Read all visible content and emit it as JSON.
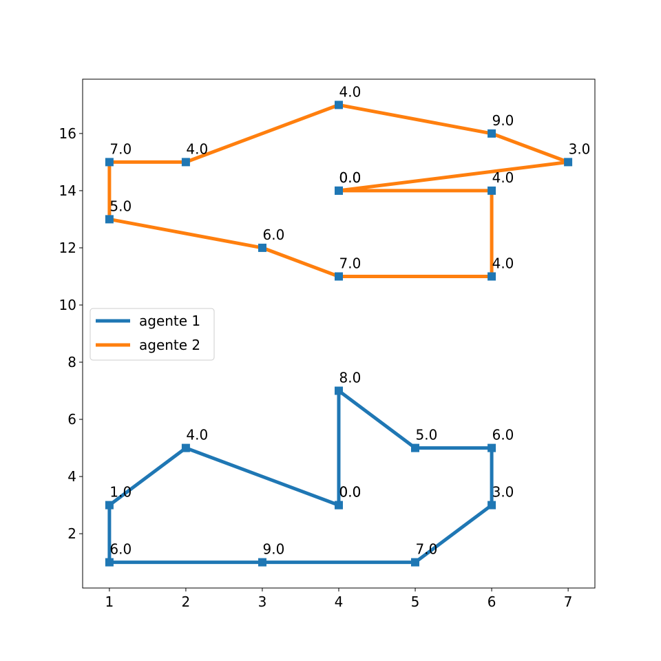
{
  "chart_data": {
    "type": "line",
    "title": "",
    "xlabel": "",
    "ylabel": "",
    "xlim": [
      0.65,
      7.35
    ],
    "ylim": [
      0.1,
      17.9
    ],
    "xticks": [
      1,
      2,
      3,
      4,
      5,
      6,
      7
    ],
    "yticks": [
      2,
      4,
      6,
      8,
      10,
      12,
      14,
      16
    ],
    "grid": false,
    "legend_position": "center-left",
    "marker_color": "#1f77b4",
    "series": [
      {
        "name": "agente 1",
        "color": "#1f77b4",
        "points": [
          {
            "x": 4,
            "y": 3,
            "label": "0.0"
          },
          {
            "x": 2,
            "y": 5,
            "label": "4.0"
          },
          {
            "x": 1,
            "y": 3,
            "label": "1.0"
          },
          {
            "x": 1,
            "y": 1,
            "label": "6.0"
          },
          {
            "x": 3,
            "y": 1,
            "label": "9.0"
          },
          {
            "x": 5,
            "y": 1,
            "label": "7.0"
          },
          {
            "x": 6,
            "y": 3,
            "label": "3.0"
          },
          {
            "x": 6,
            "y": 5,
            "label": "6.0"
          },
          {
            "x": 5,
            "y": 5,
            "label": "5.0"
          },
          {
            "x": 4,
            "y": 7,
            "label": "8.0"
          },
          {
            "x": 4,
            "y": 3,
            "label": "0.0"
          }
        ]
      },
      {
        "name": "agente 2",
        "color": "#ff7f0e",
        "points": [
          {
            "x": 4,
            "y": 14,
            "label": "0.0"
          },
          {
            "x": 6,
            "y": 14,
            "label": "4.0"
          },
          {
            "x": 6,
            "y": 11,
            "label": "4.0"
          },
          {
            "x": 4,
            "y": 11,
            "label": "7.0"
          },
          {
            "x": 3,
            "y": 12,
            "label": "6.0"
          },
          {
            "x": 1,
            "y": 13,
            "label": "5.0"
          },
          {
            "x": 1,
            "y": 15,
            "label": "7.0"
          },
          {
            "x": 2,
            "y": 15,
            "label": "4.0"
          },
          {
            "x": 4,
            "y": 17,
            "label": "4.0"
          },
          {
            "x": 6,
            "y": 16,
            "label": "9.0"
          },
          {
            "x": 7,
            "y": 15,
            "label": "3.0"
          },
          {
            "x": 4,
            "y": 14,
            "label": "0.0"
          }
        ]
      }
    ]
  }
}
